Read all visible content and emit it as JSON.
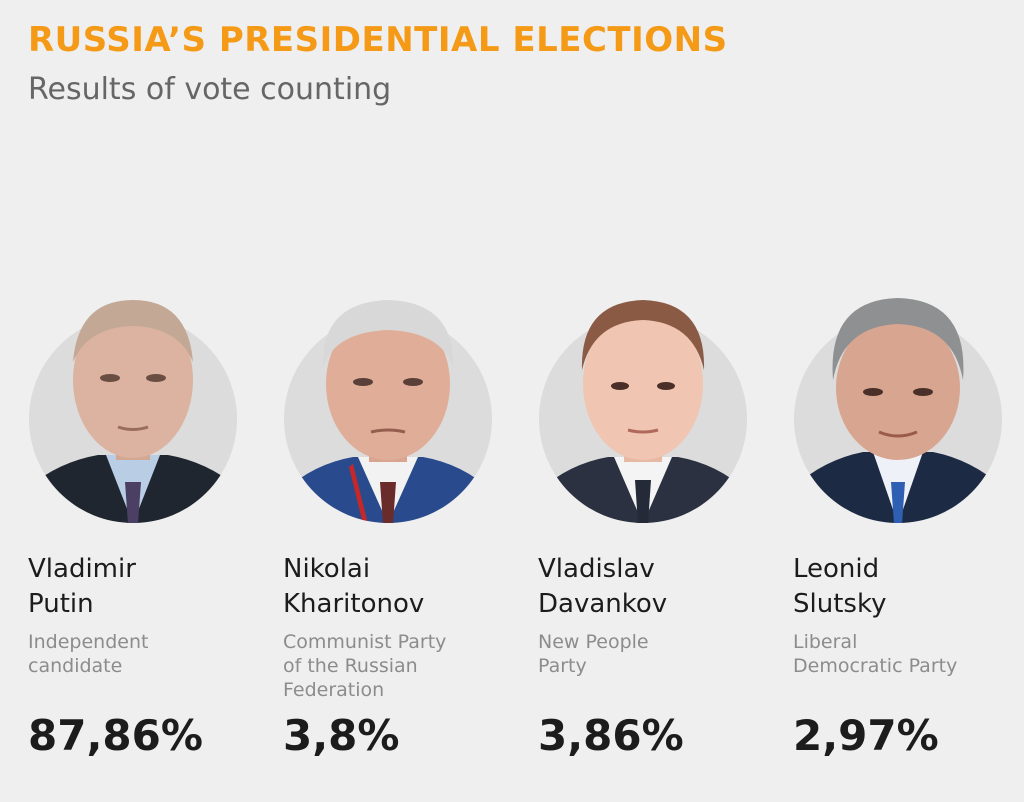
{
  "header": {
    "title": "RUSSIA’S PRESIDENTIAL ELECTIONS",
    "subtitle": "Results of vote counting"
  },
  "candidates": [
    {
      "first_name": "Vladimir",
      "last_name": "Putin",
      "party_line1": "Independent",
      "party_line2": "candidate",
      "party_line3": "",
      "result": "87,86%",
      "result_value": 87.86
    },
    {
      "first_name": "Nikolai",
      "last_name": "Kharitonov",
      "party_line1": "Communist Party",
      "party_line2": "of the Russian",
      "party_line3": "Federation",
      "result": "3,8%",
      "result_value": 3.8
    },
    {
      "first_name": "Vladislav",
      "last_name": "Davankov",
      "party_line1": "New People",
      "party_line2": "Party",
      "party_line3": "",
      "result": "3,86%",
      "result_value": 3.86
    },
    {
      "first_name": "Leonid",
      "last_name": "Slutsky",
      "party_line1": "Liberal",
      "party_line2": "Democratic Party",
      "party_line3": "",
      "result": "2,97%",
      "result_value": 2.97
    }
  ],
  "colors": {
    "title": "#f59a16",
    "subtitle": "#666666",
    "name": "#1c1c1c",
    "party": "#8c8c8c",
    "background": "#efefef"
  }
}
